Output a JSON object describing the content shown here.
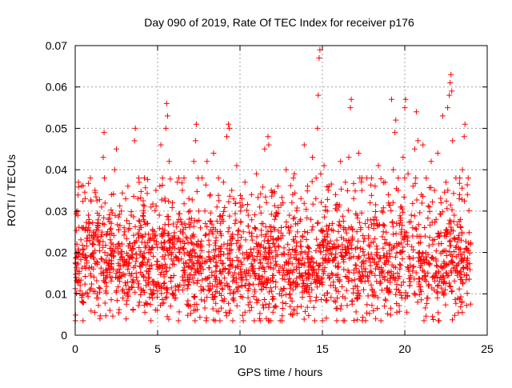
{
  "chart_data": {
    "type": "scatter",
    "title": "Day 090 of 2019, Rate Of TEC Index for receiver p176",
    "xlabel": "GPS time / hours",
    "ylabel": "ROTI / TECUs",
    "xlim": [
      0,
      25
    ],
    "ylim": [
      0,
      0.07
    ],
    "xticks": [
      0,
      5,
      10,
      15,
      20,
      25
    ],
    "xtick_labels": [
      "0",
      "5",
      "10",
      "15",
      "20",
      "25"
    ],
    "yticks": [
      0,
      0.01,
      0.02,
      0.03,
      0.04,
      0.05,
      0.06,
      0.07
    ],
    "ytick_labels": [
      "0",
      "0.01",
      "0.02",
      "0.03",
      "0.04",
      "0.05",
      "0.06",
      "0.07"
    ],
    "grid": true,
    "marker": "+",
    "color": "#ff0000",
    "series": [
      {
        "name": "ROTI",
        "points": [
          [
            0.05,
            0.014
          ],
          [
            0.1,
            0.022
          ],
          [
            0.15,
            0.03
          ],
          [
            0.2,
            0.037
          ],
          [
            0.3,
            0.012
          ],
          [
            0.4,
            0.026
          ],
          [
            0.5,
            0.008
          ],
          [
            0.6,
            0.033
          ],
          [
            0.7,
            0.018
          ],
          [
            0.8,
            0.029
          ],
          [
            0.9,
            0.011
          ],
          [
            1.0,
            0.024
          ],
          [
            1.1,
            0.016
          ],
          [
            1.2,
            0.035
          ],
          [
            1.3,
            0.009
          ],
          [
            1.4,
            0.027
          ],
          [
            1.5,
            0.004
          ],
          [
            1.6,
            0.031
          ],
          [
            1.7,
            0.043
          ],
          [
            1.75,
            0.049
          ],
          [
            1.8,
            0.02
          ],
          [
            1.9,
            0.014
          ],
          [
            2.0,
            0.028
          ],
          [
            2.1,
            0.006
          ],
          [
            2.2,
            0.034
          ],
          [
            2.3,
            0.019
          ],
          [
            2.4,
            0.04
          ],
          [
            2.5,
            0.045
          ],
          [
            2.6,
            0.022
          ],
          [
            2.7,
            0.013
          ],
          [
            2.8,
            0.03
          ],
          [
            2.9,
            0.009
          ],
          [
            3.0,
            0.025
          ],
          [
            3.1,
            0.017
          ],
          [
            3.2,
            0.036
          ],
          [
            3.3,
            0.011
          ],
          [
            3.4,
            0.029
          ],
          [
            3.5,
            0.021
          ],
          [
            3.6,
            0.047
          ],
          [
            3.65,
            0.05
          ],
          [
            3.7,
            0.015
          ],
          [
            3.8,
            0.033
          ],
          [
            3.9,
            0.008
          ],
          [
            4.0,
            0.026
          ],
          [
            4.1,
            0.019
          ],
          [
            4.2,
            0.038
          ],
          [
            4.3,
            0.012
          ],
          [
            4.4,
            0.027
          ],
          [
            4.5,
            0.023
          ],
          [
            4.6,
            0.031
          ],
          [
            4.7,
            0.01
          ],
          [
            4.8,
            0.025
          ],
          [
            4.9,
            0.035
          ],
          [
            5.0,
            0.016
          ],
          [
            5.1,
            0.029
          ],
          [
            5.2,
            0.046
          ],
          [
            5.3,
            0.038
          ],
          [
            5.4,
            0.021
          ],
          [
            5.5,
            0.05
          ],
          [
            5.55,
            0.056
          ],
          [
            5.6,
            0.053
          ],
          [
            5.7,
            0.042
          ],
          [
            5.8,
            0.014
          ],
          [
            5.9,
            0.032
          ],
          [
            6.0,
            0.024
          ],
          [
            6.1,
            0.009
          ],
          [
            6.2,
            0.037
          ],
          [
            6.3,
            0.018
          ],
          [
            6.4,
            0.028
          ],
          [
            6.5,
            0.035
          ],
          [
            6.6,
            0.012
          ],
          [
            6.7,
            0.026
          ],
          [
            6.8,
            0.02
          ],
          [
            6.9,
            0.033
          ],
          [
            7.0,
            0.007
          ],
          [
            7.1,
            0.024
          ],
          [
            7.2,
            0.042
          ],
          [
            7.3,
            0.047
          ],
          [
            7.35,
            0.051
          ],
          [
            7.4,
            0.016
          ],
          [
            7.5,
            0.03
          ],
          [
            7.6,
            0.022
          ],
          [
            7.7,
            0.038
          ],
          [
            7.8,
            0.011
          ],
          [
            7.9,
            0.027
          ],
          [
            8.0,
            0.042
          ],
          [
            8.1,
            0.019
          ],
          [
            8.2,
            0.034
          ],
          [
            8.3,
            0.025
          ],
          [
            8.4,
            0.044
          ],
          [
            8.5,
            0.013
          ],
          [
            8.6,
            0.031
          ],
          [
            8.7,
            0.038
          ],
          [
            8.8,
            0.021
          ],
          [
            8.9,
            0.028
          ],
          [
            9.0,
            0.037
          ],
          [
            9.1,
            0.016
          ],
          [
            9.2,
            0.048
          ],
          [
            9.3,
            0.051
          ],
          [
            9.35,
            0.05
          ],
          [
            9.4,
            0.023
          ],
          [
            9.5,
            0.035
          ],
          [
            9.6,
            0.009
          ],
          [
            9.7,
            0.027
          ],
          [
            9.8,
            0.041
          ],
          [
            9.9,
            0.018
          ],
          [
            10.0,
            0.032
          ],
          [
            10.1,
            0.012
          ],
          [
            10.2,
            0.025
          ],
          [
            10.3,
            0.037
          ],
          [
            10.4,
            0.02
          ],
          [
            10.5,
            0.029
          ],
          [
            10.6,
            0.008
          ],
          [
            10.7,
            0.034
          ],
          [
            10.8,
            0.016
          ],
          [
            10.9,
            0.026
          ],
          [
            11.0,
            0.039
          ],
          [
            11.1,
            0.022
          ],
          [
            11.2,
            0.031
          ],
          [
            11.3,
            0.011
          ],
          [
            11.4,
            0.027
          ],
          [
            11.5,
            0.045
          ],
          [
            11.6,
            0.004
          ],
          [
            11.7,
            0.048
          ],
          [
            11.75,
            0.046
          ],
          [
            11.8,
            0.019
          ],
          [
            11.9,
            0.035
          ],
          [
            12.0,
            0.013
          ],
          [
            12.1,
            0.028
          ],
          [
            12.2,
            0.023
          ],
          [
            12.3,
            0.036
          ],
          [
            12.4,
            0.01
          ],
          [
            12.5,
            0.026
          ],
          [
            12.6,
            0.032
          ],
          [
            12.7,
            0.017
          ],
          [
            12.8,
            0.04
          ],
          [
            12.9,
            0.022
          ],
          [
            13.0,
            0.029
          ],
          [
            13.1,
            0.012
          ],
          [
            13.2,
            0.034
          ],
          [
            13.3,
            0.039
          ],
          [
            13.4,
            0.02
          ],
          [
            13.5,
            0.027
          ],
          [
            13.6,
            0.015
          ],
          [
            13.7,
            0.033
          ],
          [
            13.8,
            0.024
          ],
          [
            13.9,
            0.046
          ],
          [
            14.0,
            0.011
          ],
          [
            14.1,
            0.036
          ],
          [
            14.2,
            0.021
          ],
          [
            14.3,
            0.028
          ],
          [
            14.4,
            0.043
          ],
          [
            14.5,
            0.016
          ],
          [
            14.6,
            0.033
          ],
          [
            14.7,
            0.05
          ],
          [
            14.75,
            0.058
          ],
          [
            14.8,
            0.067
          ],
          [
            14.85,
            0.069
          ],
          [
            14.9,
            0.039
          ],
          [
            15.0,
            0.025
          ],
          [
            15.1,
            0.041
          ],
          [
            15.2,
            0.018
          ],
          [
            15.3,
            0.03
          ],
          [
            15.4,
            0.036
          ],
          [
            15.5,
            0.012
          ],
          [
            15.6,
            0.027
          ],
          [
            15.7,
            0.022
          ],
          [
            15.8,
            0.034
          ],
          [
            15.9,
            0.009
          ],
          [
            16.0,
            0.031
          ],
          [
            16.1,
            0.042
          ],
          [
            16.2,
            0.019
          ],
          [
            16.3,
            0.026
          ],
          [
            16.4,
            0.037
          ],
          [
            16.5,
            0.014
          ],
          [
            16.6,
            0.043
          ],
          [
            16.7,
            0.055
          ],
          [
            16.75,
            0.057
          ],
          [
            16.8,
            0.023
          ],
          [
            16.9,
            0.033
          ],
          [
            17.0,
            0.017
          ],
          [
            17.1,
            0.029
          ],
          [
            17.2,
            0.044
          ],
          [
            17.3,
            0.021
          ],
          [
            17.4,
            0.035
          ],
          [
            17.5,
            0.011
          ],
          [
            17.6,
            0.027
          ],
          [
            17.7,
            0.038
          ],
          [
            17.8,
            0.024
          ],
          [
            17.9,
            0.032
          ],
          [
            18.0,
            0.015
          ],
          [
            18.1,
            0.028
          ],
          [
            18.2,
            0.036
          ],
          [
            18.3,
            0.02
          ],
          [
            18.4,
            0.041
          ],
          [
            18.5,
            0.013
          ],
          [
            18.6,
            0.03
          ],
          [
            18.7,
            0.025
          ],
          [
            18.8,
            0.037
          ],
          [
            18.9,
            0.018
          ],
          [
            19.0,
            0.034
          ],
          [
            19.1,
            0.022
          ],
          [
            19.2,
            0.057
          ],
          [
            19.3,
            0.04
          ],
          [
            19.4,
            0.049
          ],
          [
            19.45,
            0.052
          ],
          [
            19.5,
            0.027
          ],
          [
            19.6,
            0.035
          ],
          [
            19.7,
            0.016
          ],
          [
            19.8,
            0.031
          ],
          [
            19.9,
            0.043
          ],
          [
            20.0,
            0.055
          ],
          [
            20.05,
            0.057
          ],
          [
            20.1,
            0.024
          ],
          [
            20.2,
            0.039
          ],
          [
            20.3,
            0.012
          ],
          [
            20.4,
            0.029
          ],
          [
            20.5,
            0.036
          ],
          [
            20.6,
            0.045
          ],
          [
            20.7,
            0.054
          ],
          [
            20.8,
            0.047
          ],
          [
            20.9,
            0.02
          ],
          [
            21.0,
            0.034
          ],
          [
            21.1,
            0.046
          ],
          [
            21.2,
            0.026
          ],
          [
            21.3,
            0.038
          ],
          [
            21.4,
            0.015
          ],
          [
            21.5,
            0.031
          ],
          [
            21.6,
            0.042
          ],
          [
            21.7,
            0.022
          ],
          [
            21.8,
            0.035
          ],
          [
            21.9,
            0.028
          ],
          [
            22.0,
            0.044
          ],
          [
            22.1,
            0.013
          ],
          [
            22.2,
            0.032
          ],
          [
            22.3,
            0.053
          ],
          [
            22.4,
            0.024
          ],
          [
            22.5,
            0.037
          ],
          [
            22.6,
            0.055
          ],
          [
            22.7,
            0.058
          ],
          [
            22.75,
            0.061
          ],
          [
            22.8,
            0.063
          ],
          [
            22.85,
            0.059
          ],
          [
            22.9,
            0.047
          ],
          [
            23.0,
            0.029
          ],
          [
            23.1,
            0.038
          ],
          [
            23.2,
            0.017
          ],
          [
            23.3,
            0.033
          ],
          [
            23.4,
            0.026
          ],
          [
            23.5,
            0.04
          ],
          [
            23.6,
            0.048
          ],
          [
            23.65,
            0.051
          ],
          [
            23.7,
            0.021
          ],
          [
            23.8,
            0.034
          ],
          [
            23.85,
            0.038
          ]
        ],
        "envelope": {
          "description": "dense band of points across 0-24 h",
          "x_range": [
            0,
            24
          ],
          "lower_typical": 0.008,
          "upper_typical": 0.026,
          "median": 0.016
        }
      }
    ]
  }
}
